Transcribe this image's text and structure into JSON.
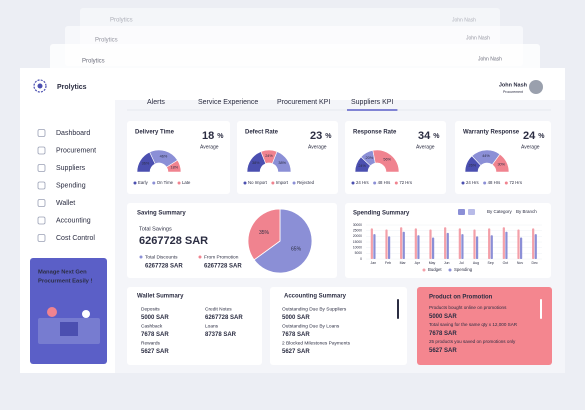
{
  "app": {
    "brand": "Prolytics"
  },
  "user": {
    "name": "John Nash",
    "role": "Procurement"
  },
  "nav": [
    "Dashboard",
    "Procurement",
    "Suppliers",
    "Spending",
    "Wallet",
    "Accounting",
    "Cost Control"
  ],
  "promo_banner": [
    "Manage Next Gen",
    "Procurment Easily !"
  ],
  "tabs": [
    "Alerts",
    "Service Experience",
    "Procurement KPI",
    "Suppliers KPI"
  ],
  "active_tab": 3,
  "kpis": [
    {
      "title": "Delivery Time",
      "value": 18,
      "unit": "%",
      "note": "Average",
      "segments": [
        {
          "name": "Early",
          "value": 36,
          "label": "36%",
          "color": "#4b4fb0"
        },
        {
          "name": "On Time",
          "value": 46,
          "label": "46%",
          "color": "#8b8fd6"
        },
        {
          "name": "Late",
          "value": 18,
          "label": "18%",
          "color": "#f0838f"
        }
      ]
    },
    {
      "title": "Defect Rate",
      "value": 23,
      "unit": "%",
      "note": "Average",
      "segments": [
        {
          "name": "No Import",
          "value": 38,
          "label": "38%",
          "color": "#4b4fb0"
        },
        {
          "name": "Import",
          "value": 24,
          "label": "24%",
          "color": "#f0838f"
        },
        {
          "name": "Rejected",
          "value": 38,
          "label": "38%",
          "color": "#8b8fd6"
        }
      ]
    },
    {
      "title": "Response Rate",
      "value": 34,
      "unit": "%",
      "note": "Average",
      "segments": [
        {
          "name": "24 Hrs",
          "value": 24,
          "label": "24%",
          "color": "#4b4fb0"
        },
        {
          "name": "48 Hrs",
          "value": 20,
          "label": "20%",
          "color": "#8b8fd6"
        },
        {
          "name": "72 Hrs",
          "value": 56,
          "label": "56%",
          "color": "#f0838f"
        }
      ]
    },
    {
      "title": "Warranty Response",
      "value": 24,
      "unit": "%",
      "note": "Average",
      "segments": [
        {
          "name": "24 Hrs",
          "value": 26,
          "label": "26%",
          "color": "#4b4fb0"
        },
        {
          "name": "48 Hrs",
          "value": 44,
          "label": "44%",
          "color": "#8b8fd6"
        },
        {
          "name": "72 Hrs",
          "value": 30,
          "label": "30%",
          "color": "#f0838f"
        }
      ]
    }
  ],
  "saving_summary": {
    "title": "Saving Summary",
    "total_label": "Total Savings",
    "total": "6267728 SAR",
    "items": [
      {
        "label": "Total Discounts",
        "value": "6267728 SAR",
        "color": "#8b8fd6"
      },
      {
        "label": "From Promotion",
        "value": "6267728 SAR",
        "color": "#f0838f"
      }
    ],
    "pie": {
      "values": [
        65,
        35
      ],
      "value_labels": [
        "65%",
        "35%"
      ],
      "colors": [
        "#8b8fd6",
        "#f0838f"
      ]
    }
  },
  "spending_summary": {
    "title": "Spending Summary",
    "filters": [
      "By Category",
      "By Branch"
    ],
    "categories": [
      "Jan",
      "Feb",
      "Mar",
      "Apr",
      "May",
      "Jun",
      "Jul",
      "Aug",
      "Sep",
      "Oct",
      "Nov",
      "Dec"
    ],
    "series": [
      {
        "name": "Budget",
        "color": "#f3a0a9",
        "values": [
          27000,
          26000,
          28000,
          27000,
          26000,
          28000,
          27000,
          26000,
          27000,
          28000,
          26000,
          27000
        ]
      },
      {
        "name": "Spending",
        "color": "#8b8fd6",
        "values": [
          22000,
          20000,
          24000,
          21000,
          19000,
          23000,
          22000,
          20000,
          21000,
          24000,
          19000,
          22000
        ]
      }
    ],
    "ylim": [
      0,
      30000
    ],
    "yticks": [
      0,
      5000,
      10000,
      15000,
      20000,
      25000,
      30000
    ]
  },
  "wallet_summary": {
    "title": "Wallet Summary",
    "items": [
      {
        "label": "Deposits",
        "value": "5000 SAR"
      },
      {
        "label": "Credit Notes",
        "value": "6267728 SAR"
      },
      {
        "label": "Cashback",
        "value": "7678 SAR"
      },
      {
        "label": "Loans",
        "value": "87378 SAR"
      },
      {
        "label": "Rewards",
        "value": "5627 SAR"
      }
    ]
  },
  "accounting_summary": {
    "title": "Accounting Summary",
    "items": [
      {
        "label": "Outstanding Due By Suppliers",
        "value": "5000 SAR"
      },
      {
        "label": "Outstanding Due By Loans",
        "value": "7678 SAR"
      },
      {
        "label": "2 Blocked Milestones Payments",
        "value": "5627 SAR"
      }
    ]
  },
  "product_promotion": {
    "title": "Product on Promotion",
    "items": [
      {
        "label": "Products bought online on promotions",
        "value": "5000 SAR"
      },
      {
        "label": "Total saving for the same qty x 12,000 SAR",
        "value": "7678 SAR"
      },
      {
        "label": "25 products you saved on promotions only",
        "value": "5627 SAR"
      }
    ]
  }
}
